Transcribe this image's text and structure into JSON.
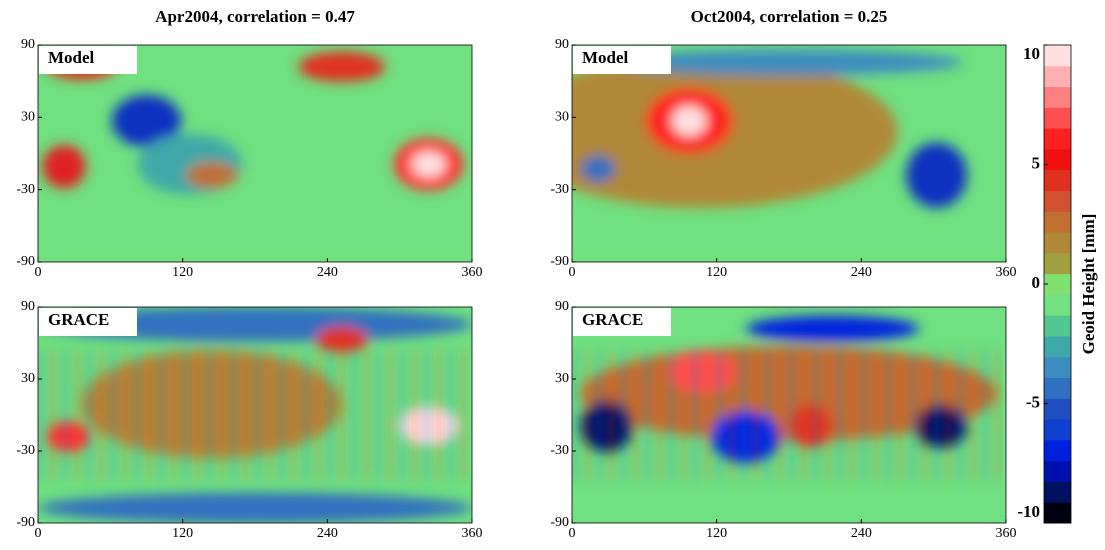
{
  "chart_data": [
    {
      "type": "heatmap",
      "title": "Apr2004, correlation = 0.47",
      "panel_label": "Model",
      "xlim": [
        0,
        360
      ],
      "xticks": [
        0,
        120,
        240,
        360
      ],
      "ylim": [
        -90,
        90
      ],
      "yticks": [
        -90,
        -30,
        30,
        90
      ]
    },
    {
      "type": "heatmap",
      "title": "Oct2004, correlation = 0.25",
      "panel_label": "Model",
      "xlim": [
        0,
        360
      ],
      "xticks": [
        0,
        120,
        240,
        360
      ],
      "ylim": [
        -90,
        90
      ],
      "yticks": [
        -90,
        -30,
        30,
        90
      ]
    },
    {
      "type": "heatmap",
      "panel_label": "GRACE",
      "xlim": [
        0,
        360
      ],
      "xticks": [
        0,
        120,
        240,
        360
      ],
      "ylim": [
        -90,
        90
      ],
      "yticks": [
        -90,
        -30,
        30,
        90
      ]
    },
    {
      "type": "heatmap",
      "panel_label": "GRACE",
      "xlim": [
        0,
        360
      ],
      "xticks": [
        0,
        120,
        240,
        360
      ],
      "ylim": [
        -90,
        90
      ],
      "yticks": [
        -90,
        -30,
        30,
        90
      ]
    }
  ],
  "colorbar": {
    "label": "Geoid Height [mm]",
    "lim": [
      -10,
      10
    ],
    "ticks": [
      -10,
      -5,
      0,
      5,
      10
    ],
    "colors": [
      "#000010",
      "#001060",
      "#0010b0",
      "#0020e0",
      "#1040d0",
      "#2050c0",
      "#3070c0",
      "#3c8cc0",
      "#40a8a8",
      "#50c890",
      "#70e080",
      "#80e070",
      "#a0a040",
      "#b08838",
      "#c07030",
      "#d05030",
      "#e03020",
      "#f01010",
      "#ff2020",
      "#ff5050",
      "#ff8080",
      "#ffb0b0",
      "#ffe0e0"
    ]
  }
}
